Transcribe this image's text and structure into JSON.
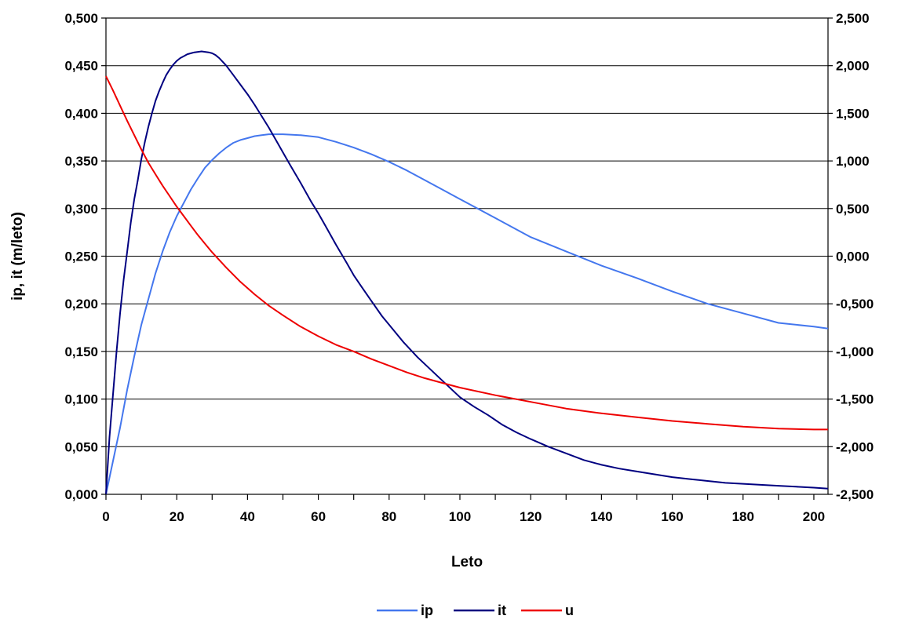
{
  "chart_data": {
    "type": "line",
    "xlabel": "Leto",
    "ylabel": "ip, it (m/leto)",
    "xlim": [
      0,
      204
    ],
    "ylim": [
      0,
      0.5
    ],
    "y2lim": [
      -2.5,
      2.5
    ],
    "grid": true,
    "legend_position": "bottom",
    "x_ticks": [
      0,
      20,
      40,
      60,
      80,
      100,
      120,
      140,
      160,
      180,
      200
    ],
    "x_tick_labels": [
      "0",
      "20",
      "40",
      "60",
      "80",
      "100",
      "120",
      "140",
      "160",
      "180",
      "200"
    ],
    "y_ticks": [
      0,
      0.05,
      0.1,
      0.15,
      0.2,
      0.25,
      0.3,
      0.35,
      0.4,
      0.45,
      0.5
    ],
    "y_tick_labels": [
      "0,000",
      "0,050",
      "0,100",
      "0,150",
      "0,200",
      "0,250",
      "0,300",
      "0,350",
      "0,400",
      "0,450",
      "0,500"
    ],
    "y2_ticks": [
      -2.5,
      -2.0,
      -1.5,
      -1.0,
      -0.5,
      0,
      0.5,
      1.0,
      1.5,
      2.0,
      2.5
    ],
    "y2_tick_labels": [
      "-2,500",
      "-2,000",
      "-1,500",
      "-1,000",
      "-0,500",
      "0,000",
      "0,500",
      "1,000",
      "1,500",
      "2,000",
      "2,500"
    ],
    "series": [
      {
        "name": "ip",
        "color": "#4477ee",
        "axis": "left",
        "x": [
          0,
          2,
          4,
          6,
          8,
          10,
          12,
          14,
          16,
          18,
          20,
          22,
          24,
          26,
          28,
          30,
          32,
          34,
          36,
          38,
          40,
          42,
          44,
          46,
          48,
          50,
          55,
          60,
          65,
          70,
          75,
          80,
          85,
          90,
          95,
          100,
          110,
          120,
          130,
          140,
          150,
          160,
          170,
          180,
          190,
          200,
          204
        ],
        "values": [
          0.0,
          0.035,
          0.07,
          0.11,
          0.145,
          0.178,
          0.205,
          0.232,
          0.255,
          0.275,
          0.292,
          0.306,
          0.32,
          0.332,
          0.343,
          0.351,
          0.358,
          0.364,
          0.369,
          0.372,
          0.374,
          0.376,
          0.377,
          0.378,
          0.378,
          0.378,
          0.377,
          0.375,
          0.37,
          0.364,
          0.357,
          0.349,
          0.34,
          0.33,
          0.32,
          0.31,
          0.29,
          0.27,
          0.255,
          0.24,
          0.227,
          0.213,
          0.2,
          0.19,
          0.18,
          0.176,
          0.174
        ]
      },
      {
        "name": "it",
        "color": "#000080",
        "axis": "left",
        "x": [
          0,
          1,
          2,
          3,
          4,
          5,
          6,
          7,
          8,
          9,
          10,
          11,
          12,
          13,
          14,
          15,
          16,
          17,
          18,
          19,
          20,
          21,
          22,
          23,
          24,
          25,
          26,
          27,
          28,
          29,
          30,
          31,
          32,
          33,
          34,
          36,
          38,
          40,
          42,
          44,
          46,
          48,
          50,
          52,
          55,
          58,
          60,
          62,
          65,
          68,
          70,
          72,
          75,
          78,
          80,
          84,
          88,
          92,
          96,
          100,
          104,
          108,
          112,
          116,
          120,
          125,
          130,
          135,
          140,
          145,
          150,
          155,
          160,
          165,
          170,
          175,
          180,
          185,
          190,
          195,
          200,
          204
        ],
        "values": [
          0.0,
          0.06,
          0.105,
          0.15,
          0.19,
          0.225,
          0.255,
          0.285,
          0.31,
          0.33,
          0.352,
          0.37,
          0.386,
          0.4,
          0.413,
          0.423,
          0.432,
          0.44,
          0.446,
          0.451,
          0.455,
          0.458,
          0.46,
          0.462,
          0.463,
          0.464,
          0.4645,
          0.465,
          0.4645,
          0.464,
          0.463,
          0.461,
          0.458,
          0.454,
          0.45,
          0.44,
          0.43,
          0.42,
          0.409,
          0.397,
          0.385,
          0.372,
          0.359,
          0.346,
          0.327,
          0.307,
          0.295,
          0.282,
          0.262,
          0.243,
          0.23,
          0.219,
          0.203,
          0.187,
          0.178,
          0.16,
          0.144,
          0.13,
          0.116,
          0.102,
          0.092,
          0.083,
          0.073,
          0.065,
          0.058,
          0.05,
          0.043,
          0.036,
          0.031,
          0.027,
          0.024,
          0.021,
          0.018,
          0.016,
          0.014,
          0.012,
          0.011,
          0.01,
          0.009,
          0.008,
          0.007,
          0.006
        ]
      },
      {
        "name": "u",
        "color": "#ee0000",
        "axis": "right",
        "x": [
          0,
          2,
          4,
          6,
          8,
          10,
          12,
          14,
          16,
          18,
          20,
          22,
          24,
          26,
          28,
          30,
          34,
          38,
          42,
          46,
          50,
          55,
          60,
          65,
          70,
          75,
          80,
          85,
          90,
          95,
          100,
          110,
          120,
          130,
          140,
          150,
          160,
          170,
          180,
          190,
          200,
          204
        ],
        "values": [
          1.89,
          1.74,
          1.58,
          1.42,
          1.27,
          1.12,
          0.98,
          0.86,
          0.74,
          0.63,
          0.52,
          0.42,
          0.32,
          0.22,
          0.13,
          0.04,
          -0.12,
          -0.27,
          -0.4,
          -0.52,
          -0.62,
          -0.74,
          -0.84,
          -0.93,
          -1.0,
          -1.08,
          -1.15,
          -1.22,
          -1.28,
          -1.33,
          -1.38,
          -1.46,
          -1.53,
          -1.6,
          -1.65,
          -1.69,
          -1.73,
          -1.76,
          -1.79,
          -1.81,
          -1.82,
          -1.82
        ]
      }
    ]
  }
}
